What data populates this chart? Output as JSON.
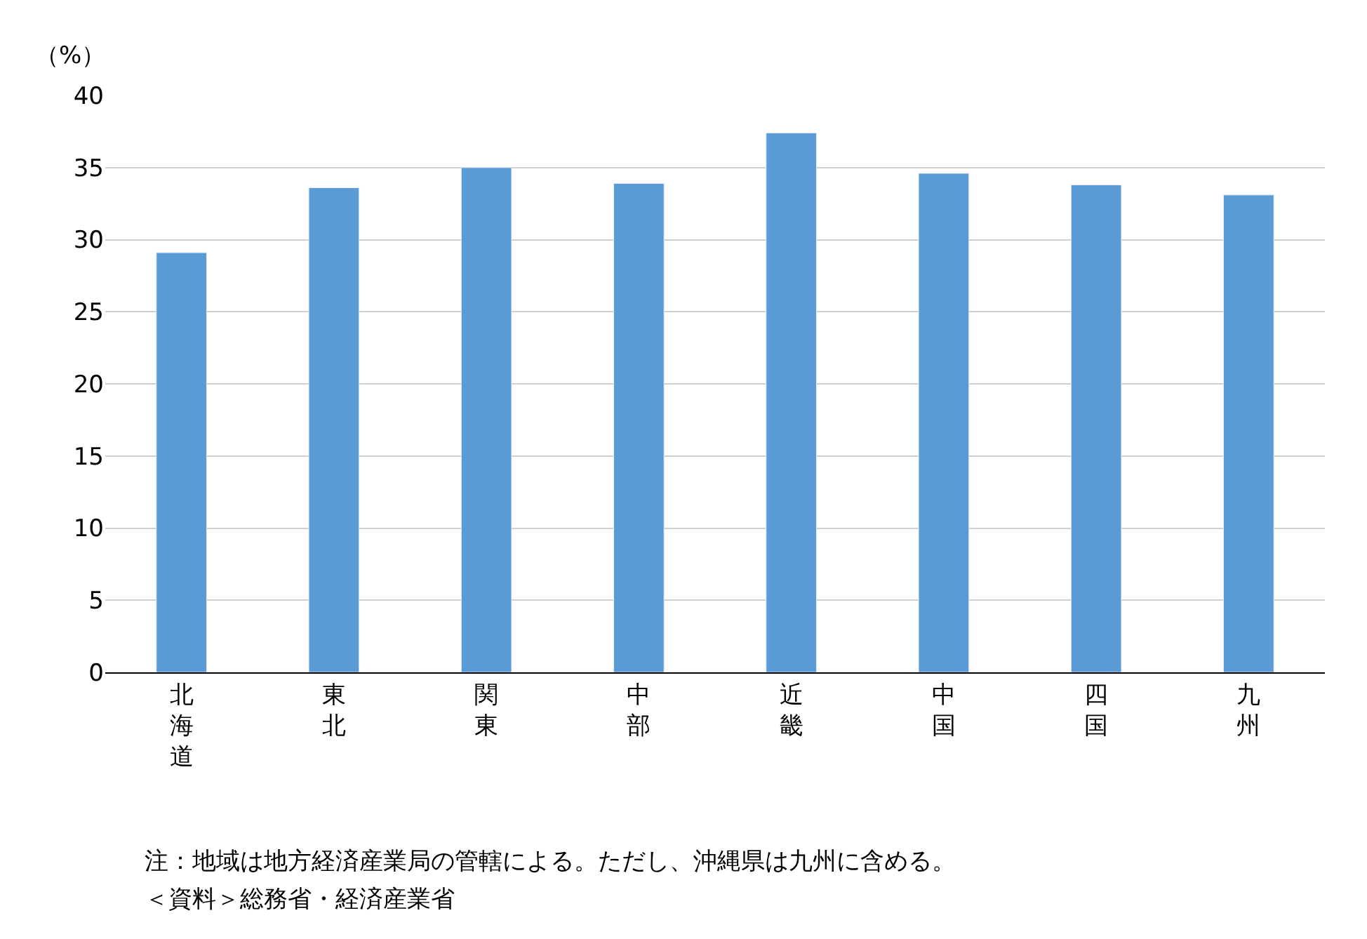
{
  "chart_data": {
    "type": "bar",
    "ylabel": "（%）",
    "categories": [
      "北海道",
      "東北",
      "関東",
      "中部",
      "近畿",
      "中国",
      "四国",
      "九州"
    ],
    "values": [
      29.1,
      33.6,
      35.0,
      33.9,
      37.4,
      34.6,
      33.8,
      33.1
    ],
    "color": "#5b9bd5",
    "ylim": [
      0,
      40
    ],
    "yticks": [
      0,
      5,
      10,
      15,
      20,
      25,
      30,
      35,
      40
    ],
    "grid": "y",
    "annotations": [
      "注：地域は地方経済産業局の管轄による。ただし、沖縄県は九州に含める。",
      "＜資料＞総務省・経済産業省"
    ]
  }
}
